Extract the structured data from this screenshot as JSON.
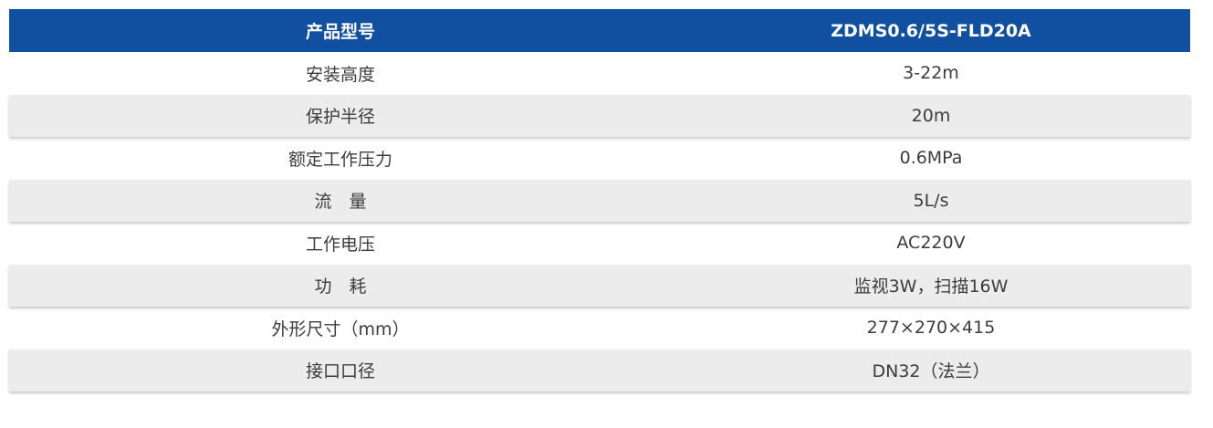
{
  "table": {
    "header": {
      "label": "产品型号",
      "value": "ZDMS0.6/5S-FLD20A"
    },
    "rows": [
      {
        "label": "安装高度",
        "value": "3-22m"
      },
      {
        "label": "保护半径",
        "value": "20m"
      },
      {
        "label": "额定工作压力",
        "value": "0.6MPa"
      },
      {
        "label": "流　量",
        "value": "5L/s"
      },
      {
        "label": "工作电压",
        "value": "AC220V"
      },
      {
        "label": "功　耗",
        "value": "监视3W，扫描16W"
      },
      {
        "label": "外形尺寸（mm）",
        "value": "277×270×415"
      },
      {
        "label": "接口口径",
        "value": "DN32（法兰）"
      }
    ]
  },
  "colors": {
    "header_background": "#1150a0",
    "header_text": "#ffffff",
    "shaded_row": "#ececec",
    "body_text": "#3c3c3c"
  }
}
